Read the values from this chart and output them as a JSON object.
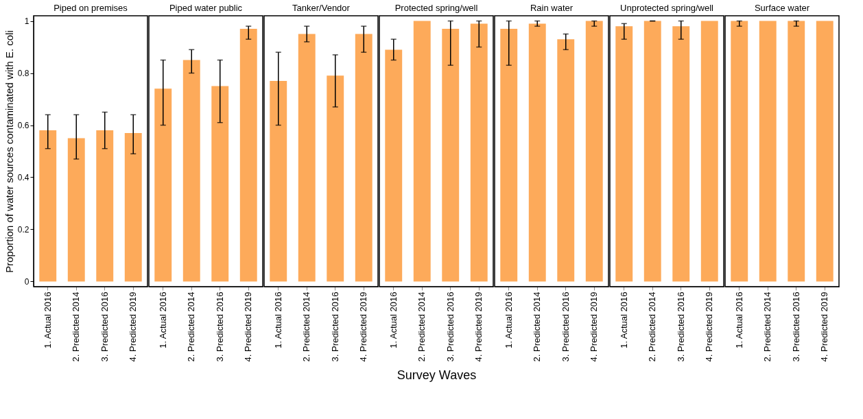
{
  "chart_data": [
    {
      "type": "bar",
      "title": "Piped on premises",
      "ylabel": "Proportion of water sources contaminated with E. coli",
      "categories": [
        "1. Actual 2016",
        "2. Predicted 2014",
        "3. Predicted 2016",
        "4. Predicted 2019"
      ],
      "values": [
        0.58,
        0.55,
        0.58,
        0.57
      ],
      "errors": [
        [
          0.51,
          0.64
        ],
        [
          0.47,
          0.64
        ],
        [
          0.51,
          0.65
        ],
        [
          0.49,
          0.64
        ]
      ],
      "color": "#fdaa5a",
      "ylim": [
        -0.02,
        1.02
      ],
      "yticks": [
        0,
        0.2,
        0.4,
        0.6,
        0.8,
        1
      ],
      "grid": false
    },
    {
      "type": "bar",
      "title": "Piped water public",
      "categories": [
        "1. Actual 2016",
        "2. Predicted 2014",
        "3. Predicted 2016",
        "4. Predicted 2019"
      ],
      "values": [
        0.74,
        0.85,
        0.75,
        0.97
      ],
      "errors": [
        [
          0.6,
          0.85
        ],
        [
          0.8,
          0.89
        ],
        [
          0.61,
          0.85
        ],
        [
          0.93,
          0.98
        ]
      ],
      "color": "#fdaa5a",
      "ylim": [
        -0.02,
        1.02
      ],
      "yticks": [
        0,
        0.2,
        0.4,
        0.6,
        0.8,
        1
      ],
      "tick_labels": "x",
      "grid": false
    },
    {
      "type": "bar",
      "title": "Tanker/Vendor",
      "categories": [
        "1. Actual 2016",
        "2. Predicted 2014",
        "3. Predicted 2016",
        "4. Predicted 2019"
      ],
      "values": [
        0.77,
        0.95,
        0.79,
        0.95
      ],
      "errors": [
        [
          0.6,
          0.88
        ],
        [
          0.92,
          0.98
        ],
        [
          0.67,
          0.87
        ],
        [
          0.88,
          0.98
        ]
      ],
      "color": "#fdaa5a",
      "ylim": [
        -0.02,
        1.02
      ],
      "yticks": [
        0,
        0.2,
        0.4,
        0.6,
        0.8,
        1
      ],
      "tick_labels": "x",
      "grid": false
    },
    {
      "type": "bar",
      "title": "Protected spring/well",
      "xlabel": "Survey Waves",
      "categories": [
        "1. Actual 2016",
        "2. Predicted 2014",
        "3. Predicted 2016",
        "4. Predicted 2019"
      ],
      "values": [
        0.89,
        1.0,
        0.97,
        0.99
      ],
      "errors": [
        [
          0.85,
          0.93
        ],
        null,
        [
          0.83,
          1.0
        ],
        [
          0.9,
          1.0
        ]
      ],
      "color": "#fdaa5a",
      "ylim": [
        -0.02,
        1.02
      ],
      "yticks": [
        0,
        0.2,
        0.4,
        0.6,
        0.8,
        1
      ],
      "tick_labels": "x",
      "grid": false
    },
    {
      "type": "bar",
      "title": "Rain water",
      "categories": [
        "1. Actual 2016",
        "2. Predicted 2014",
        "3. Predicted 2016",
        "4. Predicted 2019"
      ],
      "values": [
        0.97,
        0.99,
        0.93,
        1.0
      ],
      "errors": [
        [
          0.83,
          1.0
        ],
        [
          0.98,
          1.0
        ],
        [
          0.89,
          0.95
        ],
        [
          0.98,
          1.0
        ]
      ],
      "color": "#fdaa5a",
      "ylim": [
        -0.02,
        1.02
      ],
      "yticks": [
        0,
        0.2,
        0.4,
        0.6,
        0.8,
        1
      ],
      "tick_labels": "x",
      "grid": false
    },
    {
      "type": "bar",
      "title": "Unprotected spring/well",
      "categories": [
        "1. Actual 2016",
        "2. Predicted 2014",
        "3. Predicted 2016",
        "4. Predicted 2019"
      ],
      "values": [
        0.98,
        1.0,
        0.98,
        1.0
      ],
      "errors": [
        [
          0.93,
          0.99
        ],
        [
          1.0,
          1.0
        ],
        [
          0.93,
          1.0
        ],
        null
      ],
      "color": "#fdaa5a",
      "ylim": [
        -0.02,
        1.02
      ],
      "yticks": [
        0,
        0.2,
        0.4,
        0.6,
        0.8,
        1
      ],
      "tick_labels": "x",
      "grid": false
    },
    {
      "type": "bar",
      "title": "Surface water",
      "categories": [
        "1. Actual 2016",
        "2. Predicted 2014",
        "3. Predicted 2016",
        "4. Predicted 2019"
      ],
      "values": [
        1.0,
        1.0,
        1.0,
        1.0
      ],
      "errors": [
        [
          0.98,
          1.0
        ],
        null,
        [
          0.98,
          1.0
        ],
        null
      ],
      "color": "#fdaa5a",
      "ylim": [
        -0.02,
        1.02
      ],
      "yticks": [
        0,
        0.2,
        0.4,
        0.6,
        0.8,
        1
      ],
      "tick_labels": "x",
      "grid": false
    }
  ]
}
